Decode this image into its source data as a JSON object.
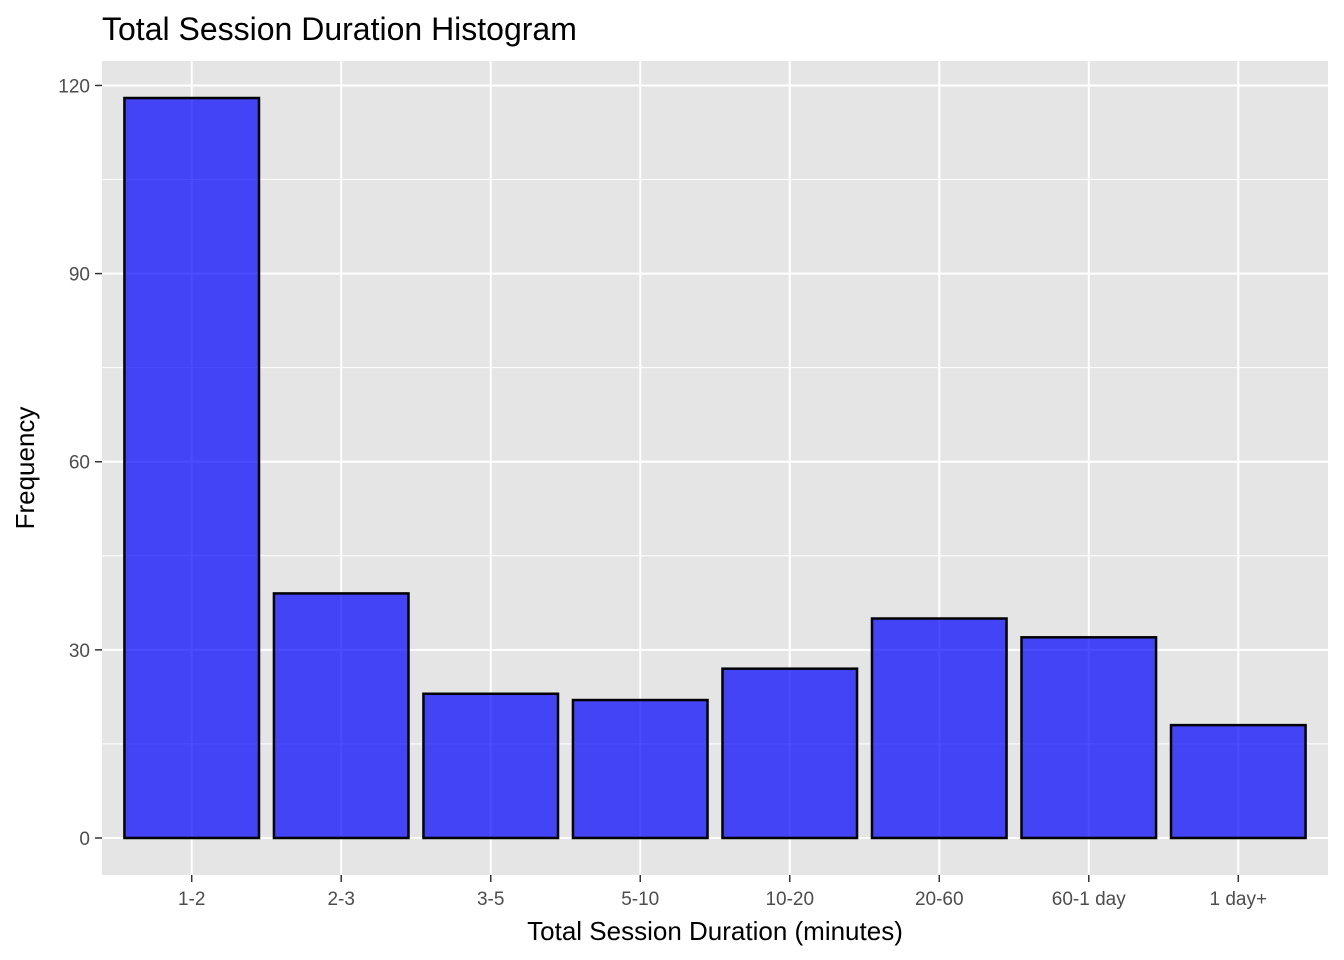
{
  "chart_data": {
    "type": "bar",
    "title": "Total Session Duration Histogram",
    "xlabel": "Total Session Duration (minutes)",
    "ylabel": "Frequency",
    "categories": [
      "1-2",
      "2-3",
      "3-5",
      "5-10",
      "10-20",
      "20-60",
      "60-1 day",
      "1 day+"
    ],
    "values": [
      118,
      39,
      23,
      22,
      27,
      35,
      32,
      18
    ],
    "ylim": [
      -5.9,
      123.9
    ],
    "yticks": [
      0,
      30,
      60,
      90,
      120
    ],
    "grid": true,
    "legend": "none",
    "colors": {
      "bar_fill": "#0000ff",
      "bar_fill_opacity": 0.7,
      "bar_stroke": "#000000",
      "panel_background": "#e5e5e5",
      "grid": "#ffffff",
      "tick_label": "#4d4d4d"
    }
  }
}
